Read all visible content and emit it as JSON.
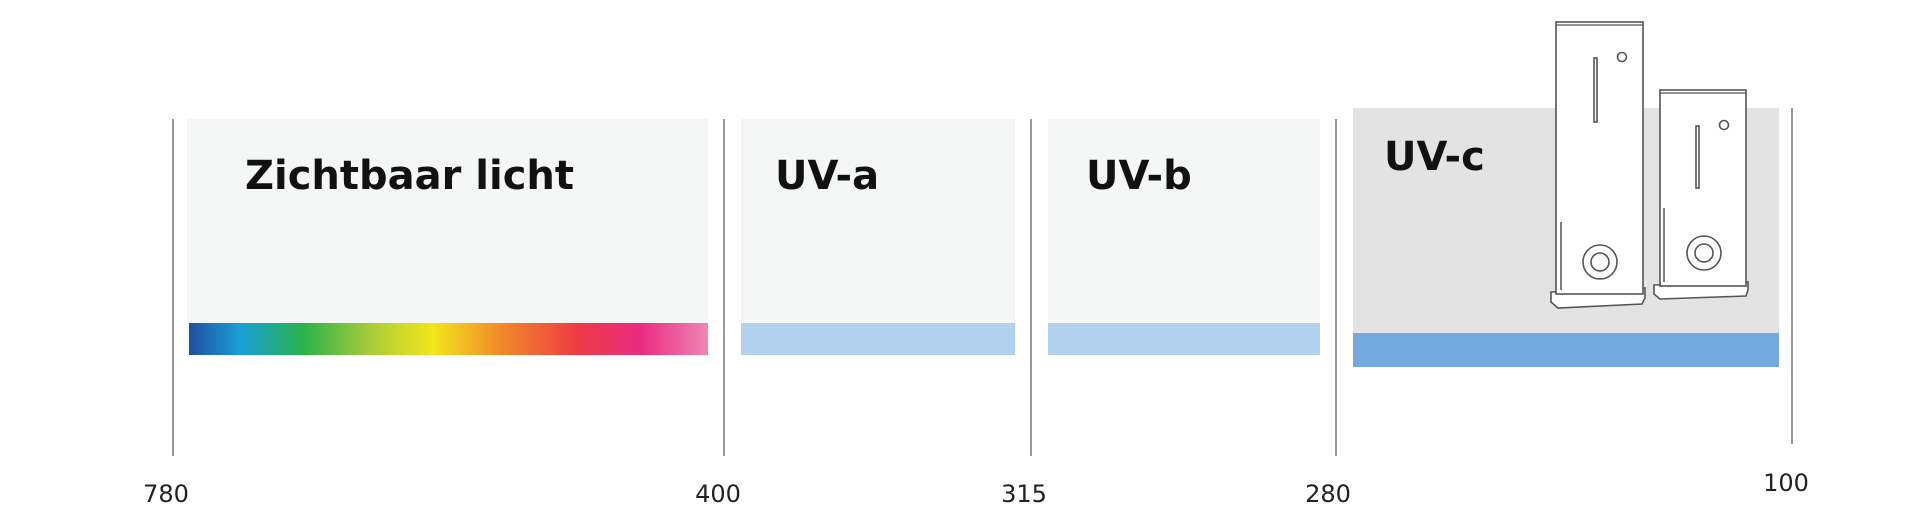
{
  "bands": [
    {
      "label": "Zichtbaar licht"
    },
    {
      "label": "UV-a"
    },
    {
      "label": "UV-b"
    },
    {
      "label": "UV-c"
    }
  ],
  "boundaries": [
    "780",
    "400",
    "315",
    "280",
    "100"
  ]
}
